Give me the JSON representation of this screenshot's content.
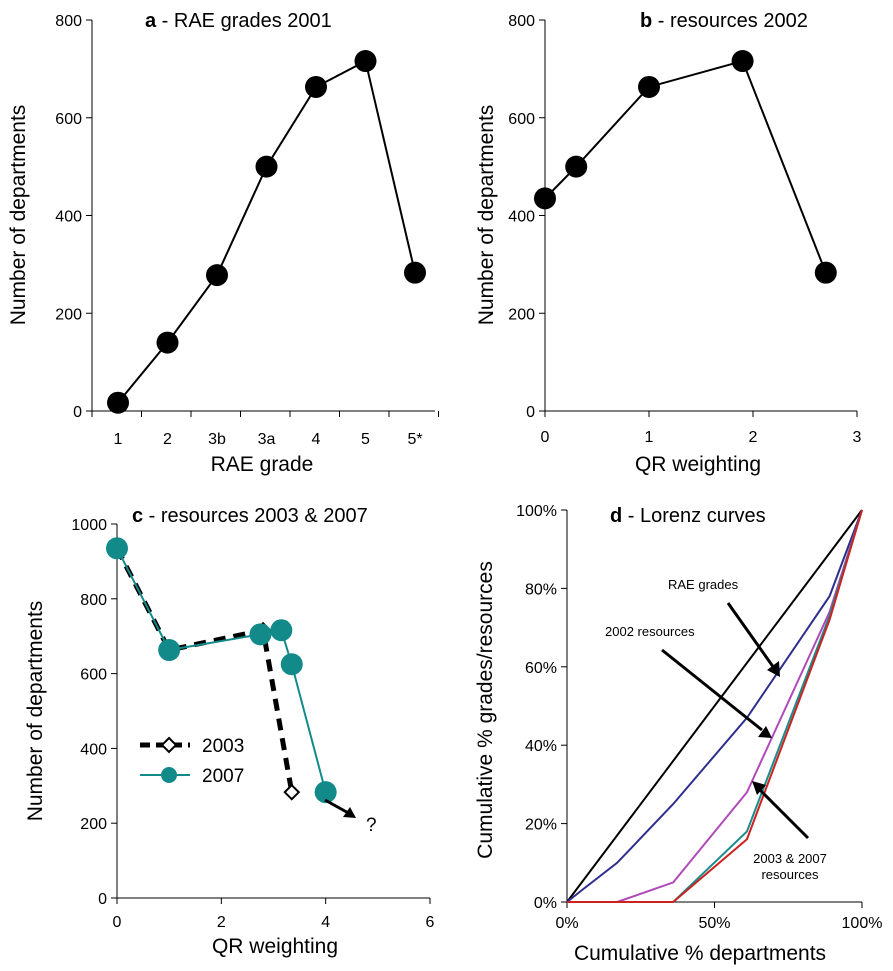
{
  "chart_data": [
    {
      "panel": "a",
      "type": "line",
      "title_letter": "a",
      "title": " - RAE grades 2001",
      "xlabel": "RAE grade",
      "ylabel": "Number of departments",
      "categories": [
        "1",
        "2",
        "3b",
        "3a",
        "4",
        "5",
        "5*"
      ],
      "ylim": [
        0,
        800
      ],
      "yticks": [
        0,
        200,
        400,
        600,
        800
      ],
      "series": [
        {
          "values": [
            17,
            140,
            278,
            500,
            663,
            716,
            283
          ]
        }
      ]
    },
    {
      "panel": "b",
      "type": "line",
      "title_letter": "b",
      "title": " - resources 2002",
      "xlabel": "QR weighting",
      "ylabel": "Number of departments",
      "xlim": [
        0,
        3
      ],
      "xticks": [
        0,
        1,
        2,
        3
      ],
      "ylim": [
        0,
        800
      ],
      "yticks": [
        0,
        200,
        400,
        600,
        800
      ],
      "series": [
        {
          "x": [
            0,
            0.3,
            1,
            1.9,
            2.7
          ],
          "y": [
            435,
            500,
            663,
            716,
            283
          ]
        }
      ]
    },
    {
      "panel": "c",
      "type": "line",
      "title_letter": "c",
      "title": " - resources 2003 & 2007",
      "xlabel": "QR weighting",
      "ylabel": "Number of departments",
      "xlim": [
        0,
        6
      ],
      "xticks": [
        0,
        2,
        4,
        6
      ],
      "ylim": [
        0,
        1000
      ],
      "yticks": [
        0,
        200,
        400,
        600,
        800,
        1000
      ],
      "legend_position": "left",
      "series": [
        {
          "name": "2003",
          "style": "dashed",
          "marker": "diamond",
          "color": "#000000",
          "x": [
            0,
            1,
            2.8,
            3.35
          ],
          "y": [
            935,
            663,
            716,
            283
          ]
        },
        {
          "name": "2007",
          "style": "solid",
          "marker": "circle",
          "color": "#138a8a",
          "x": [
            0,
            1,
            2.75,
            3.15,
            3.35,
            4.0
          ],
          "y": [
            935,
            663,
            705,
            716,
            625,
            283
          ]
        }
      ],
      "annotations": [
        {
          "text": "?"
        }
      ]
    },
    {
      "panel": "d",
      "type": "line",
      "title_letter": "d",
      "title": " - Lorenz curves",
      "xlabel": "Cumulative % departments",
      "ylabel": "Cumulative % grades/resources",
      "xticks": [
        "0%",
        "50%",
        "100%"
      ],
      "yticks": [
        "0%",
        "20%",
        "40%",
        "60%",
        "80%",
        "100%"
      ],
      "xlim": [
        0,
        100
      ],
      "ylim": [
        0,
        100
      ],
      "series": [
        {
          "color": "#000000",
          "x": [
            0,
            100
          ],
          "y": [
            0,
            100
          ]
        },
        {
          "color": "#2e2e8c",
          "x": [
            0,
            5,
            17,
            36,
            61,
            89,
            100
          ],
          "y": [
            0,
            3,
            10,
            25,
            47,
            78,
            100
          ]
        },
        {
          "color": "#b04ab8",
          "x": [
            0,
            17,
            36,
            61,
            89,
            100
          ],
          "y": [
            0,
            0,
            5,
            28,
            74,
            100
          ]
        },
        {
          "color": "#1a8c8c",
          "x": [
            0,
            36,
            61,
            89,
            100
          ],
          "y": [
            0,
            0,
            18,
            73,
            100
          ]
        },
        {
          "color": "#cc2222",
          "x": [
            0,
            36,
            61,
            89,
            100
          ],
          "y": [
            0,
            0,
            16,
            72,
            100
          ]
        }
      ],
      "annotations": [
        {
          "text": "RAE grades"
        },
        {
          "text": "2002 resources"
        },
        {
          "text": "2003 & 2007"
        },
        {
          "text": "resources"
        }
      ]
    }
  ]
}
